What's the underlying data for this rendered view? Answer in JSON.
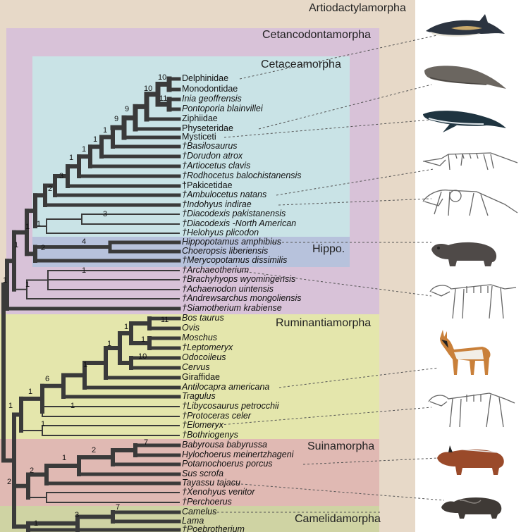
{
  "title": "Artiodactylamorpha",
  "regions": {
    "cetancodontamorpha": "Cetancodontamorpha",
    "cetaceamorpha": "Cetaceamorpha",
    "hippo": "Hippo.",
    "ruminantiamorpha": "Ruminantiamorpha",
    "suinamorpha": "Suinamorpha",
    "camelidamorpha": "Camelidamorpha"
  },
  "colors": {
    "artiodactylamorpha": "#e7d9c8",
    "cetancodontamorpha": "#d8c2d8",
    "cetaceamorpha": "#c9e3e6",
    "hippo": "#b7c2dc",
    "ruminantiamorpha": "#e4e6ac",
    "suinamorpha": "#e0b9b3",
    "camelidamorpha": "#cfd3a3",
    "branch": "#3a3a3a"
  },
  "taxa": [
    {
      "name": "Delphinidae",
      "italic": false
    },
    {
      "name": "Monodontidae",
      "italic": false
    },
    {
      "name": "Inia geoffrensis",
      "italic": true
    },
    {
      "name": "Pontoporia blainvillei",
      "italic": true
    },
    {
      "name": "Ziphiidae",
      "italic": false
    },
    {
      "name": "Physeteridae",
      "italic": false
    },
    {
      "name": "Mysticeti",
      "italic": false
    },
    {
      "name": "†Basilosaurus",
      "italic": true
    },
    {
      "name": "†Dorudon atrox",
      "italic": true
    },
    {
      "name": "†Artiocetus clavis",
      "italic": true
    },
    {
      "name": "†Rodhocetus balochistanensis",
      "italic": true
    },
    {
      "name": "†Pakicetidae",
      "italic": false
    },
    {
      "name": "†Ambulocetus natans",
      "italic": true
    },
    {
      "name": "†Indohyus indirae",
      "italic": true
    },
    {
      "name": "†Diacodexis pakistanensis",
      "italic": true
    },
    {
      "name": "†Diacodexis -North American",
      "italic": true
    },
    {
      "name": "†Helohyus plicodon",
      "italic": true
    },
    {
      "name": "Hippopotamus amphibius",
      "italic": true
    },
    {
      "name": "Choeropsis liberiensis",
      "italic": true
    },
    {
      "name": "†Merycopotamus dissimilis",
      "italic": true
    },
    {
      "name": "†Archaeotherium",
      "italic": true
    },
    {
      "name": "†Brachyhyops wyomingensis",
      "italic": true
    },
    {
      "name": "†Achaenodon uintensis",
      "italic": true
    },
    {
      "name": "†Andrewsarchus mongoliensis",
      "italic": true
    },
    {
      "name": "†Siamotherium krabiense",
      "italic": true
    },
    {
      "name": "Bos taurus",
      "italic": true
    },
    {
      "name": "Ovis",
      "italic": true
    },
    {
      "name": "Moschus",
      "italic": true
    },
    {
      "name": "†Leptomeryx",
      "italic": true
    },
    {
      "name": "Odocoileus",
      "italic": true
    },
    {
      "name": "Cervus",
      "italic": true
    },
    {
      "name": "Giraffidae",
      "italic": false
    },
    {
      "name": "Antilocapra americana",
      "italic": true
    },
    {
      "name": "Tragulus",
      "italic": true
    },
    {
      "name": "†Libycosaurus petrocchii",
      "italic": true
    },
    {
      "name": "†Protoceras celer",
      "italic": true
    },
    {
      "name": "†Elomeryx",
      "italic": true
    },
    {
      "name": "†Bothriogenys",
      "italic": true
    },
    {
      "name": "Babyrousa babyrussa",
      "italic": true
    },
    {
      "name": "Hylochoerus meinertzhageni",
      "italic": true
    },
    {
      "name": "Potamochoerus porcus",
      "italic": true
    },
    {
      "name": "Sus scrofa",
      "italic": true
    },
    {
      "name": "Tayassu tajacu",
      "italic": true
    },
    {
      "name": "†Xenohyus venitor",
      "italic": true
    },
    {
      "name": "†Perchoerus",
      "italic": true
    },
    {
      "name": "Camelus",
      "italic": true
    },
    {
      "name": "Lama",
      "italic": true
    },
    {
      "name": "†Poebrotherium",
      "italic": true
    }
  ],
  "node_support": [
    "10",
    "10",
    "11",
    "9",
    "9",
    "1",
    "1",
    "1",
    "1",
    "3",
    "2",
    "3",
    "1",
    "1",
    "1",
    "4",
    "2",
    "1",
    "1",
    "1",
    "11",
    "1",
    "1",
    "10",
    "1",
    "1",
    "6",
    "1",
    "1",
    "1",
    "1",
    "7",
    "2",
    "1",
    "2",
    "2",
    "7",
    "3",
    "1"
  ],
  "animals": [
    "dolphin-icon",
    "sperm-whale-icon",
    "humpback-whale-icon",
    "ambulocetus-skeleton-icon",
    "indohyus-skeleton-icon",
    "hippo-icon",
    "archaeotherium-skeleton-icon",
    "pronghorn-icon",
    "elomeryx-skeleton-icon",
    "red-river-hog-icon",
    "peccary-icon"
  ]
}
